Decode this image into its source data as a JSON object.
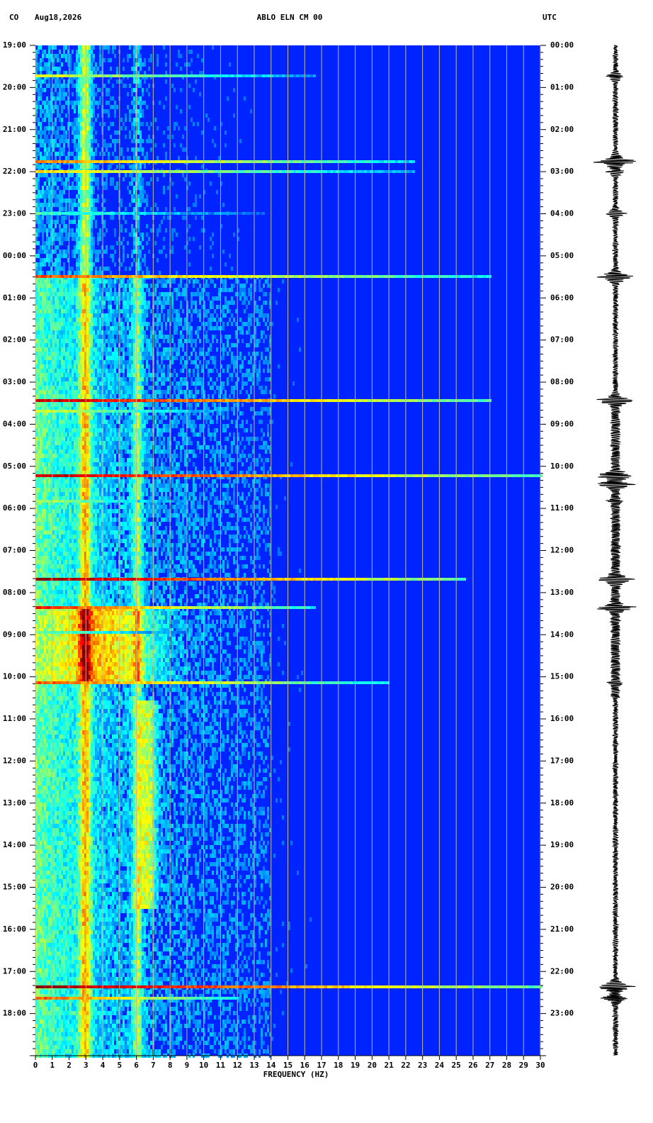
{
  "chart_data": {
    "type": "spectrogram",
    "network": "CO",
    "date": "Aug18,2026",
    "title": "ABLO ELN CM 00",
    "timezone": "UTC",
    "xlabel": "FREQUENCY (HZ)",
    "xlim": [
      0,
      30
    ],
    "xticks": [
      0,
      1,
      2,
      3,
      4,
      5,
      6,
      7,
      8,
      9,
      10,
      11,
      12,
      13,
      14,
      15,
      16,
      17,
      18,
      19,
      20,
      21,
      22,
      23,
      24,
      25,
      26,
      27,
      28,
      29,
      30
    ],
    "grid": true,
    "y_left_labels": [
      "19:00",
      "20:00",
      "21:00",
      "22:00",
      "23:00",
      "00:00",
      "01:00",
      "02:00",
      "03:00",
      "04:00",
      "05:00",
      "06:00",
      "07:00",
      "08:00",
      "09:00",
      "10:00",
      "11:00",
      "12:00",
      "13:00",
      "14:00",
      "15:00",
      "16:00",
      "17:00",
      "18:00"
    ],
    "y_right_labels": [
      "00:00",
      "01:00",
      "02:00",
      "03:00",
      "04:00",
      "05:00",
      "06:00",
      "07:00",
      "08:00",
      "09:00",
      "10:00",
      "11:00",
      "12:00",
      "13:00",
      "14:00",
      "15:00",
      "16:00",
      "17:00",
      "18:00",
      "19:00",
      "20:00",
      "21:00",
      "22:00",
      "23:00"
    ]
  }
}
